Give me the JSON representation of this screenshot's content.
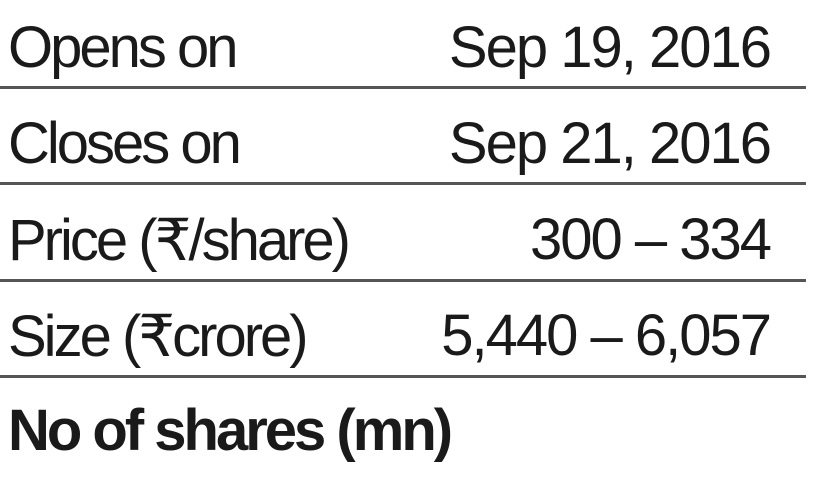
{
  "rows": [
    {
      "label": "Opens on",
      "value": "Sep 19, 2016"
    },
    {
      "label": "Closes on",
      "value": "Sep 21, 2016"
    },
    {
      "label": "Price (₹/share)",
      "value": "300 – 334"
    },
    {
      "label": "Size (₹crore)",
      "value": "5,440 – 6,057"
    }
  ],
  "section_heading": "No of shares (mn)"
}
